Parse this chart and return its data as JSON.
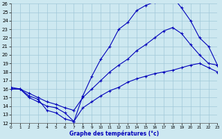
{
  "xlabel": "Graphe des températures (°c)",
  "bg_color": "#cde8f0",
  "line_color": "#0000bb",
  "grid_color": "#a0c8d8",
  "xlim": [
    0,
    23
  ],
  "ylim": [
    12,
    26
  ],
  "ytick_vals": [
    12,
    13,
    14,
    15,
    16,
    17,
    18,
    19,
    20,
    21,
    22,
    23,
    24,
    25,
    26
  ],
  "xtick_vals": [
    0,
    1,
    2,
    3,
    4,
    5,
    6,
    7,
    8,
    9,
    10,
    11,
    12,
    13,
    14,
    15,
    16,
    17,
    18,
    19,
    20,
    21,
    22,
    23
  ],
  "line_top_x": [
    0,
    1,
    2,
    3,
    4,
    5,
    6,
    7,
    8,
    9,
    10,
    11,
    12,
    13,
    14,
    15,
    16,
    17,
    18,
    19,
    20,
    21,
    22,
    23
  ],
  "line_top_y": [
    16.0,
    16.0,
    15.0,
    14.5,
    14.0,
    13.8,
    13.2,
    12.2,
    15.2,
    17.5,
    19.5,
    21.0,
    23.0,
    23.8,
    25.2,
    25.8,
    26.2,
    27.0,
    26.8,
    25.5,
    24.0,
    22.0,
    21.0,
    18.8
  ],
  "line_mid_x": [
    0,
    1,
    2,
    3,
    4,
    5,
    6,
    7,
    8,
    9,
    10,
    11,
    12,
    13,
    14,
    15,
    16,
    17,
    18,
    19,
    20,
    21,
    22,
    23
  ],
  "line_mid_y": [
    16.0,
    16.0,
    15.5,
    15.0,
    14.5,
    14.2,
    13.8,
    13.5,
    15.0,
    16.0,
    17.0,
    18.0,
    18.8,
    19.5,
    20.5,
    21.2,
    22.0,
    22.8,
    23.2,
    22.5,
    21.2,
    20.0,
    19.0,
    18.8
  ],
  "line_bot_x": [
    0,
    1,
    2,
    3,
    4,
    5,
    6,
    7,
    8,
    9,
    10,
    11,
    12,
    13,
    14,
    15,
    16,
    17,
    18,
    19,
    20,
    21,
    22,
    23
  ],
  "line_bot_y": [
    16.2,
    16.0,
    15.2,
    14.8,
    13.5,
    13.2,
    12.5,
    12.2,
    13.8,
    14.5,
    15.2,
    15.8,
    16.2,
    16.8,
    17.2,
    17.5,
    17.8,
    18.0,
    18.2,
    18.5,
    18.8,
    19.0,
    18.5,
    18.0
  ]
}
